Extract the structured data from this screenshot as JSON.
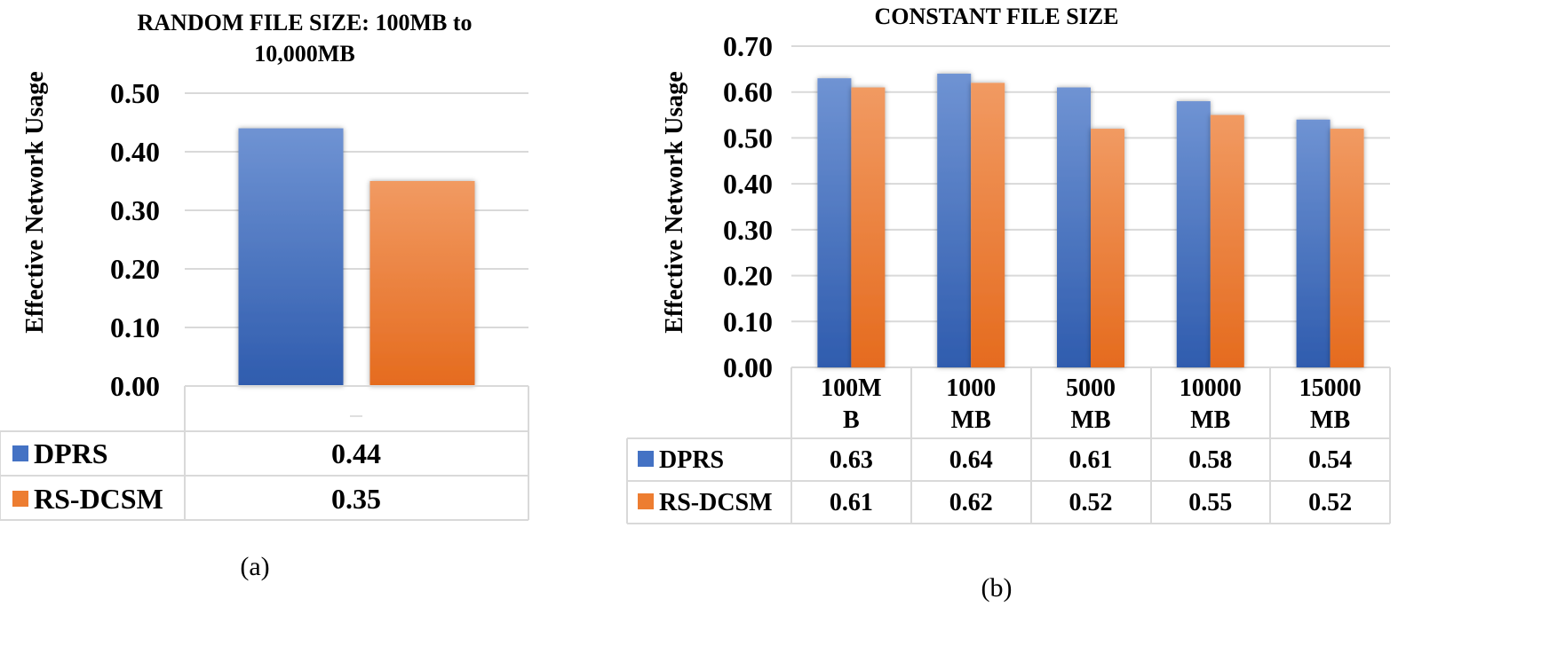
{
  "chart_data": [
    {
      "id": "a",
      "type": "bar",
      "title": "RANDOM FILE  SIZE: 100MB to 10,000MB",
      "title_lines": [
        "RANDOM FILE  SIZE: 100MB to",
        "10,000MB"
      ],
      "ylabel": "Effective Network Usage",
      "ylim": [
        0,
        0.5
      ],
      "yticks": [
        "0.00",
        "0.10",
        "0.20",
        "0.30",
        "0.40",
        "0.50"
      ],
      "categories": [
        ""
      ],
      "series": [
        {
          "name": "DPRS",
          "color": "#4472c4",
          "values": [
            0.44
          ],
          "labels": [
            "0.44"
          ]
        },
        {
          "name": "RS-DCSM",
          "color": "#ed7d31",
          "values": [
            0.35
          ],
          "labels": [
            "0.35"
          ]
        }
      ],
      "grid": true,
      "legend": "data-table",
      "caption": "(a)"
    },
    {
      "id": "b",
      "type": "bar",
      "title": "CONSTANT FILE SIZE",
      "ylabel": "Effective Network Usage",
      "ylim": [
        0,
        0.7
      ],
      "yticks": [
        "0.00",
        "0.10",
        "0.20",
        "0.30",
        "0.40",
        "0.50",
        "0.60",
        "0.70"
      ],
      "categories": [
        "100MB",
        "1000 MB",
        "5000 MB",
        "10000 MB",
        "15000 MB"
      ],
      "category_lines": [
        [
          "100M",
          "B"
        ],
        [
          "1000",
          "MB"
        ],
        [
          "5000",
          "MB"
        ],
        [
          "10000",
          "MB"
        ],
        [
          "15000",
          "MB"
        ]
      ],
      "series": [
        {
          "name": "DPRS",
          "color": "#4472c4",
          "values": [
            0.63,
            0.64,
            0.61,
            0.58,
            0.54
          ],
          "labels": [
            "0.63",
            "0.64",
            "0.61",
            "0.58",
            "0.54"
          ]
        },
        {
          "name": "RS-DCSM",
          "color": "#ed7d31",
          "values": [
            0.61,
            0.62,
            0.52,
            0.55,
            0.52
          ],
          "labels": [
            "0.61",
            "0.62",
            "0.52",
            "0.55",
            "0.52"
          ]
        }
      ],
      "grid": true,
      "legend": "data-table",
      "caption": "(b)"
    }
  ]
}
